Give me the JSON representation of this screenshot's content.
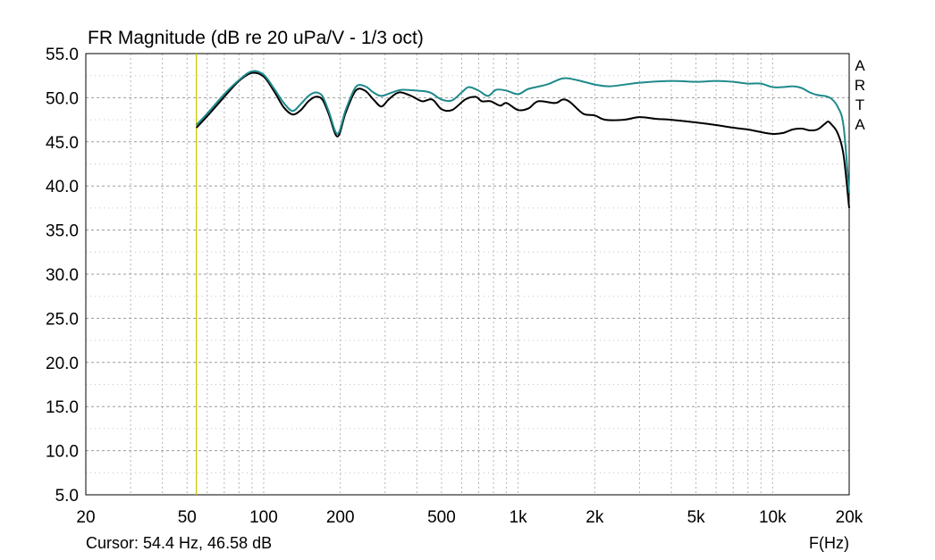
{
  "chart_data": {
    "type": "line",
    "title": "FR Magnitude (dB re 20 uPa/V - 1/3 oct)",
    "xlabel": "F(Hz)",
    "ylabel": "",
    "x_scale": "log",
    "xlim": [
      20,
      20000
    ],
    "ylim": [
      5.0,
      55.0
    ],
    "x_ticks": [
      {
        "value": 20,
        "label": "20"
      },
      {
        "value": 50,
        "label": "50"
      },
      {
        "value": 100,
        "label": "100"
      },
      {
        "value": 200,
        "label": "200"
      },
      {
        "value": 500,
        "label": "500"
      },
      {
        "value": 1000,
        "label": "1k"
      },
      {
        "value": 2000,
        "label": "2k"
      },
      {
        "value": 5000,
        "label": "5k"
      },
      {
        "value": 10000,
        "label": "10k"
      },
      {
        "value": 20000,
        "label": "20k"
      }
    ],
    "y_ticks": [
      {
        "value": 55,
        "label": "55.0"
      },
      {
        "value": 50,
        "label": "50.0"
      },
      {
        "value": 45,
        "label": "45.0"
      },
      {
        "value": 40,
        "label": "40.0"
      },
      {
        "value": 35,
        "label": "35.0"
      },
      {
        "value": 30,
        "label": "30.0"
      },
      {
        "value": 25,
        "label": "25.0"
      },
      {
        "value": 20,
        "label": "20.0"
      },
      {
        "value": 15,
        "label": "15.0"
      },
      {
        "value": 10,
        "label": "10.0"
      },
      {
        "value": 5,
        "label": "5.0"
      }
    ],
    "grid": true,
    "cursor": {
      "x": 54.4,
      "color": "#c8c800"
    },
    "cursor_text": "Cursor: 54.4 Hz, 46.58 dB",
    "series": [
      {
        "color": "#000000",
        "points": [
          [
            54.4,
            46.6
          ],
          [
            60,
            47.9
          ],
          [
            70,
            50.1
          ],
          [
            80,
            51.9
          ],
          [
            90,
            52.8
          ],
          [
            100,
            52.4
          ],
          [
            110,
            50.7
          ],
          [
            120,
            48.9
          ],
          [
            130,
            48.1
          ],
          [
            140,
            48.6
          ],
          [
            150,
            49.6
          ],
          [
            160,
            50.1
          ],
          [
            170,
            49.8
          ],
          [
            180,
            48.2
          ],
          [
            195,
            45.6
          ],
          [
            210,
            48.3
          ],
          [
            230,
            50.8
          ],
          [
            250,
            50.8
          ],
          [
            270,
            49.8
          ],
          [
            290,
            49.0
          ],
          [
            310,
            49.8
          ],
          [
            340,
            50.6
          ],
          [
            380,
            50.2
          ],
          [
            420,
            49.6
          ],
          [
            460,
            49.8
          ],
          [
            500,
            48.7
          ],
          [
            550,
            48.6
          ],
          [
            620,
            49.8
          ],
          [
            680,
            50.1
          ],
          [
            720,
            49.6
          ],
          [
            780,
            49.6
          ],
          [
            850,
            49.1
          ],
          [
            900,
            49.4
          ],
          [
            1000,
            48.6
          ],
          [
            1100,
            48.8
          ],
          [
            1200,
            49.6
          ],
          [
            1400,
            49.4
          ],
          [
            1500,
            49.8
          ],
          [
            1600,
            49.5
          ],
          [
            1800,
            48.2
          ],
          [
            2000,
            48.0
          ],
          [
            2200,
            47.5
          ],
          [
            2600,
            47.5
          ],
          [
            3000,
            47.8
          ],
          [
            3500,
            47.6
          ],
          [
            4000,
            47.5
          ],
          [
            5000,
            47.2
          ],
          [
            6000,
            46.9
          ],
          [
            7000,
            46.6
          ],
          [
            8000,
            46.4
          ],
          [
            9000,
            46.1
          ],
          [
            10000,
            45.9
          ],
          [
            11000,
            46.0
          ],
          [
            12000,
            46.4
          ],
          [
            13000,
            46.5
          ],
          [
            14000,
            46.3
          ],
          [
            15000,
            46.4
          ],
          [
            16000,
            47.0
          ],
          [
            16500,
            47.3
          ],
          [
            17000,
            47.0
          ],
          [
            18000,
            46.0
          ],
          [
            19000,
            43.5
          ],
          [
            20000,
            37.5
          ]
        ]
      },
      {
        "color": "#1f8a8c",
        "points": [
          [
            54.4,
            46.9
          ],
          [
            60,
            48.2
          ],
          [
            70,
            50.4
          ],
          [
            80,
            52.0
          ],
          [
            90,
            53.0
          ],
          [
            100,
            52.6
          ],
          [
            110,
            51.0
          ],
          [
            120,
            49.4
          ],
          [
            130,
            48.5
          ],
          [
            140,
            49.3
          ],
          [
            150,
            50.2
          ],
          [
            160,
            50.6
          ],
          [
            170,
            50.2
          ],
          [
            180,
            48.5
          ],
          [
            195,
            45.9
          ],
          [
            210,
            48.6
          ],
          [
            230,
            51.2
          ],
          [
            250,
            51.3
          ],
          [
            270,
            50.6
          ],
          [
            290,
            50.2
          ],
          [
            320,
            50.6
          ],
          [
            350,
            50.9
          ],
          [
            400,
            50.8
          ],
          [
            450,
            50.6
          ],
          [
            500,
            49.8
          ],
          [
            550,
            49.7
          ],
          [
            600,
            50.6
          ],
          [
            640,
            51.2
          ],
          [
            700,
            50.8
          ],
          [
            760,
            50.2
          ],
          [
            820,
            50.9
          ],
          [
            900,
            50.8
          ],
          [
            1000,
            50.4
          ],
          [
            1100,
            51.0
          ],
          [
            1300,
            51.5
          ],
          [
            1500,
            52.2
          ],
          [
            1700,
            52.0
          ],
          [
            2000,
            51.5
          ],
          [
            2300,
            51.3
          ],
          [
            3000,
            51.7
          ],
          [
            4000,
            51.9
          ],
          [
            5000,
            51.8
          ],
          [
            6000,
            51.9
          ],
          [
            7000,
            51.8
          ],
          [
            8000,
            51.6
          ],
          [
            9000,
            51.6
          ],
          [
            10000,
            51.2
          ],
          [
            11000,
            51.2
          ],
          [
            12000,
            51.3
          ],
          [
            13000,
            51.1
          ],
          [
            14000,
            50.6
          ],
          [
            15000,
            50.3
          ],
          [
            16000,
            50.2
          ],
          [
            17000,
            49.9
          ],
          [
            18000,
            49.0
          ],
          [
            19000,
            46.8
          ],
          [
            20000,
            39.2
          ]
        ]
      }
    ]
  },
  "watermark": [
    "A",
    "R",
    "T",
    "A"
  ]
}
